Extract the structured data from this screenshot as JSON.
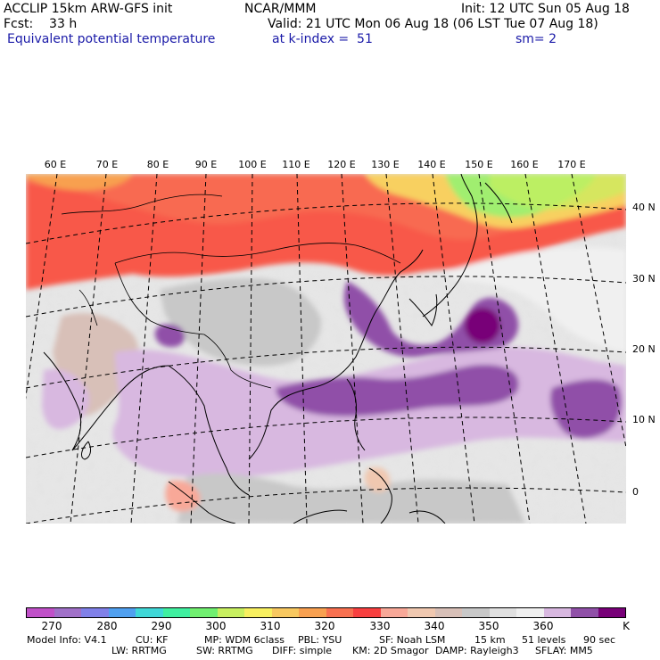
{
  "header": {
    "left1": "ACCLIP 15km ARW-GFS init",
    "left2": "Fcst:    33 h",
    "left3": "Equivalent potential temperature",
    "center1": "NCAR/MMM",
    "init": "Init: 12 UTC Sun 05 Aug 18",
    "valid": "Valid: 21 UTC Mon 06 Aug 18 (06 LST Tue 07 Aug 18)",
    "level": "at k-index =  51",
    "sm": "sm= 2"
  },
  "map": {
    "lon_labels": [
      "60 E",
      "70 E",
      "80 E",
      "90 E",
      "100 E",
      "110 E",
      "120 E",
      "130 E",
      "140 E",
      "150 E",
      "160 E",
      "170 E"
    ],
    "lat_labels": [
      "40 N",
      "30 N",
      "20 N",
      "10 N",
      "0"
    ]
  },
  "colorbar": {
    "colors": [
      "#c050c8",
      "#a070c8",
      "#8080e8",
      "#50a0f0",
      "#40d8d8",
      "#40f0a0",
      "#70f070",
      "#c8f060",
      "#f8f060",
      "#f8c860",
      "#f8a050",
      "#f87050",
      "#f84040",
      "#f8a898",
      "#f0c8b0",
      "#d8c0b8",
      "#c8c8c8",
      "#e0e0e0",
      "#f0f0f0",
      "#d8b8e0",
      "#9050a8",
      "#780078"
    ],
    "labels": [
      "270",
      "280",
      "290",
      "300",
      "310",
      "320",
      "330",
      "340",
      "350",
      "360"
    ],
    "unit": "K"
  },
  "footer": {
    "line1": [
      "Model Info: V4.1",
      "CU: KF",
      "MP: WDM 6class",
      "PBL: YSU",
      "SF: Noah LSM",
      "15 km",
      "51 levels",
      "90 sec"
    ],
    "line2": [
      "LW: RRTMG",
      "SW: RRTMG",
      "DIFF: simple",
      "KM: 2D Smagor",
      "DAMP: Rayleigh3",
      "SFLAY: MM5"
    ]
  }
}
